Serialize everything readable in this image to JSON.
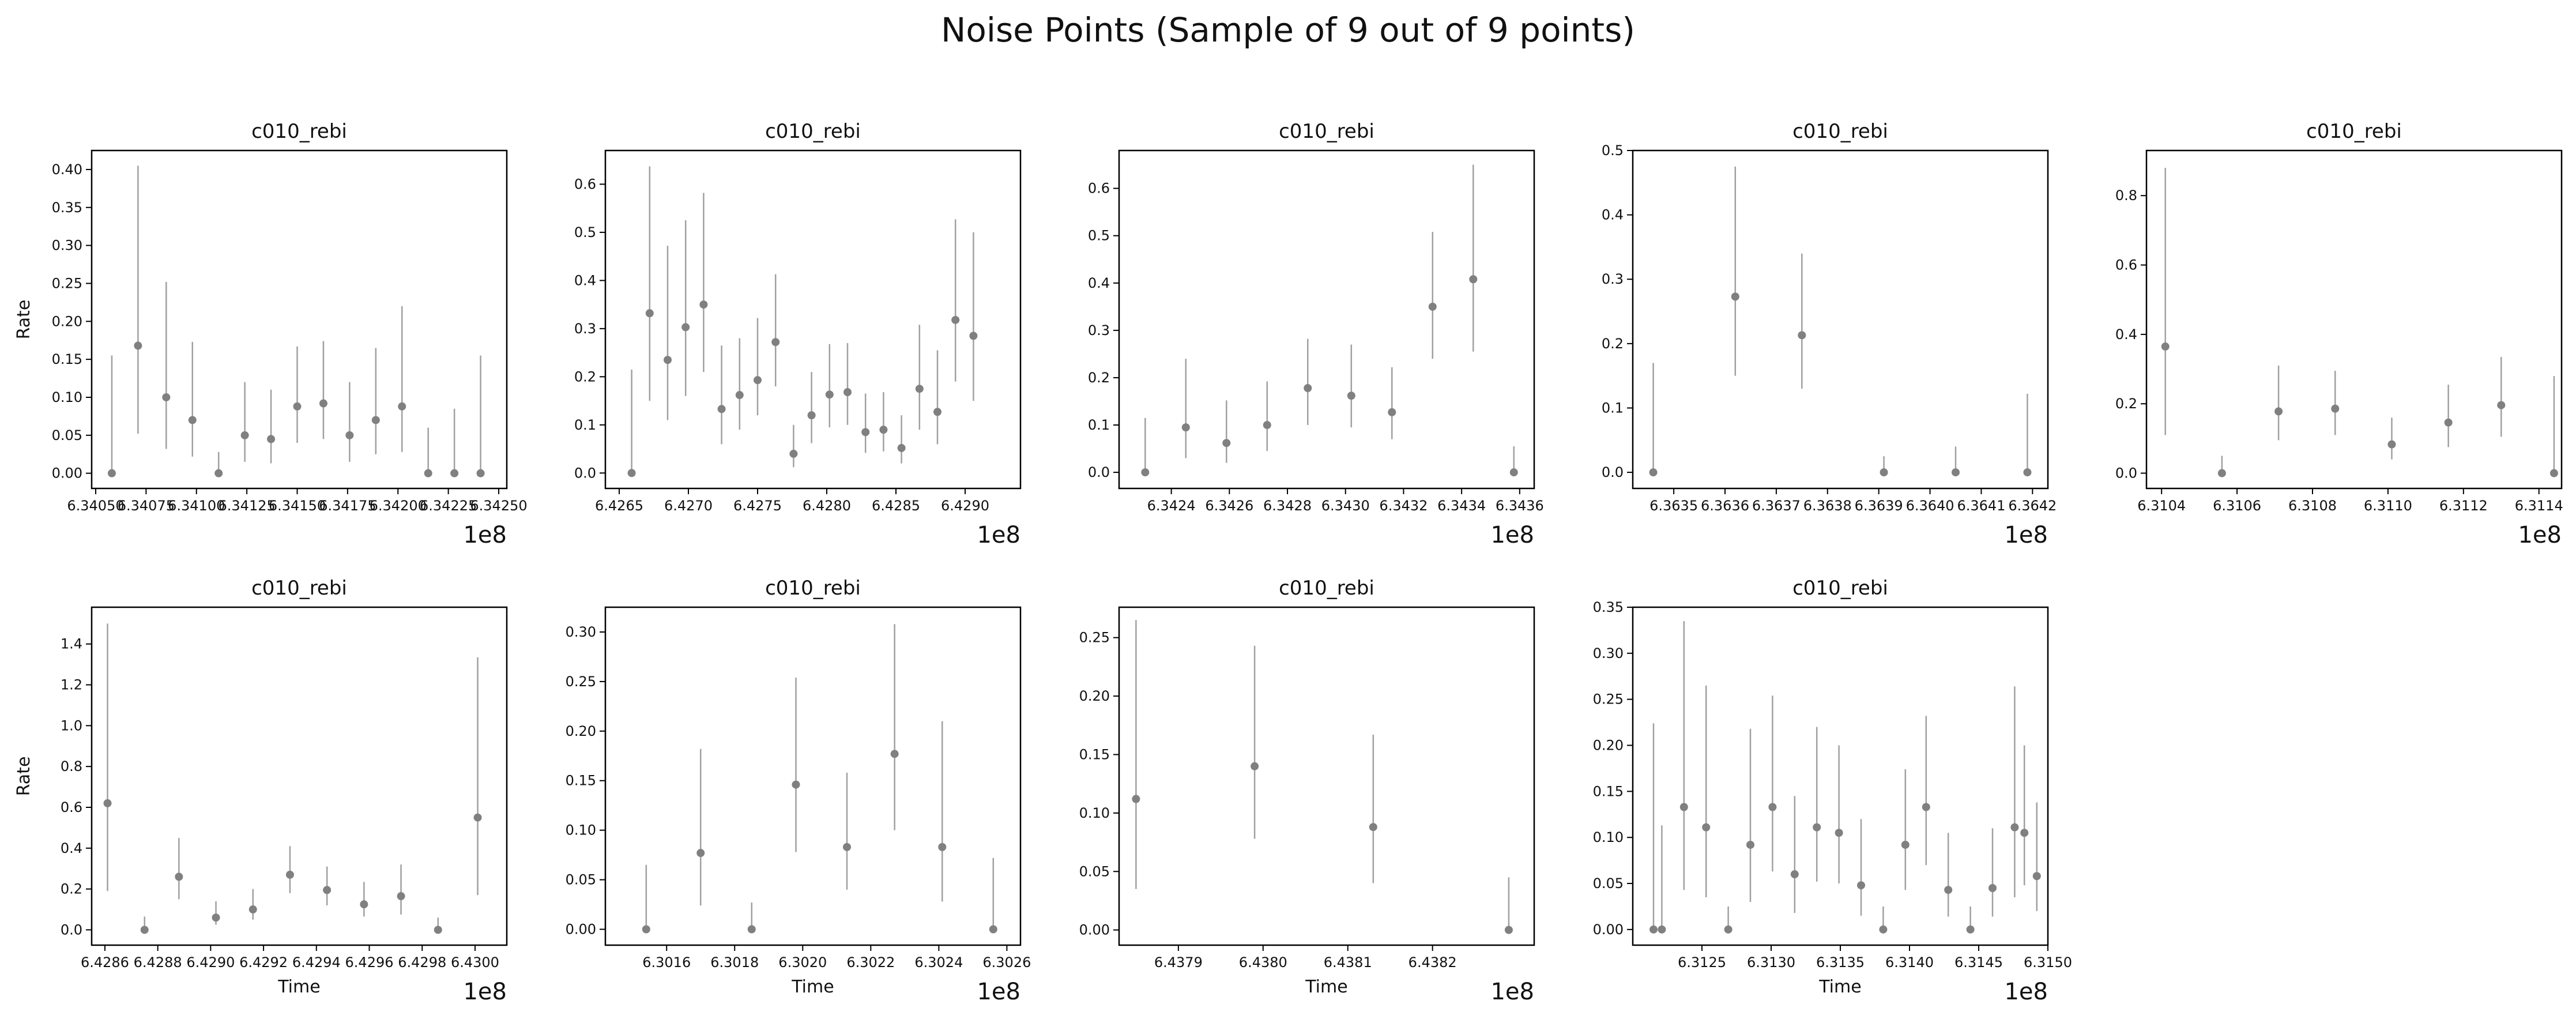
{
  "suptitle": "Noise Points (Sample of 9 out of 9 points)",
  "style": {
    "marker_color": "#808080",
    "errorbar_color": "#a0a0a0",
    "axis_color": "#000000"
  },
  "chart_data": [
    {
      "type": "scatter",
      "title": "c010_rebi",
      "xlabel": "",
      "ylabel": "Rate",
      "offset_label": "1e8",
      "xlim": [
        6.34048,
        6.34254
      ],
      "ylim": [
        -0.02,
        0.425
      ],
      "grid": false,
      "xticks": [
        6.3405,
        6.34075,
        6.341,
        6.34125,
        6.3415,
        6.34175,
        6.342,
        6.34225,
        6.3425
      ],
      "xtick_labels": [
        "6.34050",
        "6.34075",
        "6.34100",
        "6.34125",
        "6.34150",
        "6.34175",
        "6.34200",
        "6.34225",
        "6.34250"
      ],
      "yticks": [
        0.0,
        0.05,
        0.1,
        0.15,
        0.2,
        0.25,
        0.3,
        0.35,
        0.4
      ],
      "ytick_labels": [
        "0.00",
        "0.05",
        "0.10",
        "0.15",
        "0.20",
        "0.25",
        "0.30",
        "0.35",
        "0.40"
      ],
      "points": [
        {
          "x": 6.34058,
          "y": 0.0,
          "lo": 0.0,
          "hi": 0.155
        },
        {
          "x": 6.34071,
          "y": 0.168,
          "lo": 0.052,
          "hi": 0.405
        },
        {
          "x": 6.34085,
          "y": 0.1,
          "lo": 0.032,
          "hi": 0.252
        },
        {
          "x": 6.34098,
          "y": 0.07,
          "lo": 0.022,
          "hi": 0.173
        },
        {
          "x": 6.34111,
          "y": 0.0,
          "lo": 0.0,
          "hi": 0.028
        },
        {
          "x": 6.34124,
          "y": 0.05,
          "lo": 0.015,
          "hi": 0.12
        },
        {
          "x": 6.34137,
          "y": 0.045,
          "lo": 0.013,
          "hi": 0.11
        },
        {
          "x": 6.3415,
          "y": 0.088,
          "lo": 0.04,
          "hi": 0.167
        },
        {
          "x": 6.34163,
          "y": 0.092,
          "lo": 0.045,
          "hi": 0.174
        },
        {
          "x": 6.34176,
          "y": 0.05,
          "lo": 0.015,
          "hi": 0.12
        },
        {
          "x": 6.34189,
          "y": 0.07,
          "lo": 0.025,
          "hi": 0.165
        },
        {
          "x": 6.34202,
          "y": 0.088,
          "lo": 0.028,
          "hi": 0.22
        },
        {
          "x": 6.34215,
          "y": 0.0,
          "lo": 0.0,
          "hi": 0.06
        },
        {
          "x": 6.34228,
          "y": 0.0,
          "lo": 0.0,
          "hi": 0.085
        },
        {
          "x": 6.34241,
          "y": 0.0,
          "lo": 0.0,
          "hi": 0.155
        }
      ]
    },
    {
      "type": "scatter",
      "title": "c010_rebi",
      "xlabel": "",
      "ylabel": "",
      "offset_label": "1e8",
      "xlim": [
        6.4264,
        6.4294
      ],
      "ylim": [
        -0.032,
        0.67
      ],
      "grid": false,
      "xticks": [
        6.4265,
        6.427,
        6.4275,
        6.428,
        6.4285,
        6.429
      ],
      "xtick_labels": [
        "6.4265",
        "6.4270",
        "6.4275",
        "6.4280",
        "6.4285",
        "6.4290"
      ],
      "yticks": [
        0.0,
        0.1,
        0.2,
        0.3,
        0.4,
        0.5,
        0.6
      ],
      "ytick_labels": [
        "0.0",
        "0.1",
        "0.2",
        "0.3",
        "0.4",
        "0.5",
        "0.6"
      ],
      "points": [
        {
          "x": 6.42659,
          "y": 0.0,
          "lo": 0.0,
          "hi": 0.215
        },
        {
          "x": 6.42672,
          "y": 0.332,
          "lo": 0.15,
          "hi": 0.637
        },
        {
          "x": 6.42685,
          "y": 0.235,
          "lo": 0.11,
          "hi": 0.472
        },
        {
          "x": 6.42698,
          "y": 0.303,
          "lo": 0.16,
          "hi": 0.525
        },
        {
          "x": 6.42711,
          "y": 0.35,
          "lo": 0.21,
          "hi": 0.582
        },
        {
          "x": 6.42724,
          "y": 0.133,
          "lo": 0.06,
          "hi": 0.265
        },
        {
          "x": 6.42737,
          "y": 0.162,
          "lo": 0.09,
          "hi": 0.28
        },
        {
          "x": 6.4275,
          "y": 0.193,
          "lo": 0.12,
          "hi": 0.322
        },
        {
          "x": 6.42763,
          "y": 0.272,
          "lo": 0.18,
          "hi": 0.413
        },
        {
          "x": 6.42776,
          "y": 0.04,
          "lo": 0.012,
          "hi": 0.1
        },
        {
          "x": 6.42789,
          "y": 0.12,
          "lo": 0.062,
          "hi": 0.21
        },
        {
          "x": 6.42802,
          "y": 0.163,
          "lo": 0.095,
          "hi": 0.268
        },
        {
          "x": 6.42815,
          "y": 0.168,
          "lo": 0.1,
          "hi": 0.27
        },
        {
          "x": 6.42828,
          "y": 0.085,
          "lo": 0.042,
          "hi": 0.165
        },
        {
          "x": 6.42841,
          "y": 0.09,
          "lo": 0.045,
          "hi": 0.168
        },
        {
          "x": 6.42854,
          "y": 0.052,
          "lo": 0.02,
          "hi": 0.12
        },
        {
          "x": 6.42867,
          "y": 0.175,
          "lo": 0.09,
          "hi": 0.308
        },
        {
          "x": 6.4288,
          "y": 0.127,
          "lo": 0.06,
          "hi": 0.255
        },
        {
          "x": 6.42893,
          "y": 0.318,
          "lo": 0.19,
          "hi": 0.527
        },
        {
          "x": 6.42906,
          "y": 0.285,
          "lo": 0.15,
          "hi": 0.5
        }
      ]
    },
    {
      "type": "scatter",
      "title": "c010_rebi",
      "xlabel": "",
      "ylabel": "",
      "offset_label": "1e8",
      "xlim": [
        6.34222,
        6.34365
      ],
      "ylim": [
        -0.034,
        0.68
      ],
      "grid": false,
      "xticks": [
        6.3424,
        6.3426,
        6.3428,
        6.343,
        6.3432,
        6.3434,
        6.3436
      ],
      "xtick_labels": [
        "6.3424",
        "6.3426",
        "6.3428",
        "6.3430",
        "6.3432",
        "6.3434",
        "6.3436"
      ],
      "yticks": [
        0.0,
        0.1,
        0.2,
        0.3,
        0.4,
        0.5,
        0.6
      ],
      "ytick_labels": [
        "0.0",
        "0.1",
        "0.2",
        "0.3",
        "0.4",
        "0.5",
        "0.6"
      ],
      "points": [
        {
          "x": 6.34231,
          "y": 0.0,
          "lo": 0.0,
          "hi": 0.115
        },
        {
          "x": 6.34245,
          "y": 0.095,
          "lo": 0.03,
          "hi": 0.24
        },
        {
          "x": 6.34259,
          "y": 0.062,
          "lo": 0.02,
          "hi": 0.152
        },
        {
          "x": 6.34273,
          "y": 0.1,
          "lo": 0.045,
          "hi": 0.192
        },
        {
          "x": 6.34287,
          "y": 0.178,
          "lo": 0.1,
          "hi": 0.282
        },
        {
          "x": 6.34302,
          "y": 0.162,
          "lo": 0.095,
          "hi": 0.27
        },
        {
          "x": 6.34316,
          "y": 0.127,
          "lo": 0.07,
          "hi": 0.222
        },
        {
          "x": 6.3433,
          "y": 0.35,
          "lo": 0.24,
          "hi": 0.508
        },
        {
          "x": 6.34344,
          "y": 0.408,
          "lo": 0.255,
          "hi": 0.65
        },
        {
          "x": 6.34358,
          "y": 0.0,
          "lo": 0.0,
          "hi": 0.055
        }
      ]
    },
    {
      "type": "scatter",
      "title": "c010_rebi",
      "xlabel": "",
      "ylabel": "",
      "offset_label": "1e8",
      "xlim": [
        6.36342,
        6.36423
      ],
      "ylim": [
        -0.025,
        0.5
      ],
      "grid": false,
      "xticks": [
        6.3635,
        6.3636,
        6.3637,
        6.3638,
        6.3639,
        6.364,
        6.3641,
        6.3642
      ],
      "xtick_labels": [
        "6.3635",
        "6.3636",
        "6.3637",
        "6.3638",
        "6.3639",
        "6.3640",
        "6.3641",
        "6.3642"
      ],
      "yticks": [
        0.0,
        0.1,
        0.2,
        0.3,
        0.4,
        0.5
      ],
      "ytick_labels": [
        "0.0",
        "0.1",
        "0.2",
        "0.3",
        "0.4",
        "0.5"
      ],
      "points": [
        {
          "x": 6.36346,
          "y": 0.0,
          "lo": 0.0,
          "hi": 0.17
        },
        {
          "x": 6.36362,
          "y": 0.273,
          "lo": 0.15,
          "hi": 0.475
        },
        {
          "x": 6.36375,
          "y": 0.213,
          "lo": 0.13,
          "hi": 0.34
        },
        {
          "x": 6.36391,
          "y": 0.0,
          "lo": 0.0,
          "hi": 0.025
        },
        {
          "x": 6.36405,
          "y": 0.0,
          "lo": 0.0,
          "hi": 0.04
        },
        {
          "x": 6.36419,
          "y": 0.0,
          "lo": 0.0,
          "hi": 0.122
        }
      ]
    },
    {
      "type": "scatter",
      "title": "c010_rebi",
      "xlabel": "",
      "ylabel": "",
      "offset_label": "1e8",
      "xlim": [
        6.31036,
        6.31146
      ],
      "ylim": [
        -0.044,
        0.93
      ],
      "grid": false,
      "xticks": [
        6.3104,
        6.3106,
        6.3108,
        6.311,
        6.3112,
        6.3114
      ],
      "xtick_labels": [
        "6.3104",
        "6.3106",
        "6.3108",
        "6.3110",
        "6.3112",
        "6.3114"
      ],
      "yticks": [
        0.0,
        0.2,
        0.4,
        0.6,
        0.8
      ],
      "ytick_labels": [
        "0.0",
        "0.2",
        "0.4",
        "0.6",
        "0.8"
      ],
      "points": [
        {
          "x": 6.31041,
          "y": 0.365,
          "lo": 0.11,
          "hi": 0.88
        },
        {
          "x": 6.31056,
          "y": 0.0,
          "lo": 0.0,
          "hi": 0.05
        },
        {
          "x": 6.31071,
          "y": 0.178,
          "lo": 0.095,
          "hi": 0.31
        },
        {
          "x": 6.31086,
          "y": 0.186,
          "lo": 0.11,
          "hi": 0.295
        },
        {
          "x": 6.31101,
          "y": 0.083,
          "lo": 0.04,
          "hi": 0.16
        },
        {
          "x": 6.31116,
          "y": 0.146,
          "lo": 0.075,
          "hi": 0.255
        },
        {
          "x": 6.3113,
          "y": 0.196,
          "lo": 0.105,
          "hi": 0.335
        },
        {
          "x": 6.31144,
          "y": 0.0,
          "lo": 0.0,
          "hi": 0.28
        }
      ]
    },
    {
      "type": "scatter",
      "title": "c010_rebi",
      "xlabel": "Time",
      "ylabel": "Rate",
      "offset_label": "1e8",
      "xlim": [
        6.42855,
        6.43012
      ],
      "ylim": [
        -0.075,
        1.58
      ],
      "grid": false,
      "xticks": [
        6.4286,
        6.4288,
        6.429,
        6.4292,
        6.4294,
        6.4296,
        6.4298,
        6.43
      ],
      "xtick_labels": [
        "6.4286",
        "6.4288",
        "6.4290",
        "6.4292",
        "6.4294",
        "6.4296",
        "6.4298",
        "6.4300"
      ],
      "yticks": [
        0.0,
        0.2,
        0.4,
        0.6,
        0.8,
        1.0,
        1.2,
        1.4
      ],
      "ytick_labels": [
        "0.0",
        "0.2",
        "0.4",
        "0.6",
        "0.8",
        "1.0",
        "1.2",
        "1.4"
      ],
      "points": [
        {
          "x": 6.42861,
          "y": 0.62,
          "lo": 0.19,
          "hi": 1.5
        },
        {
          "x": 6.42875,
          "y": 0.0,
          "lo": 0.0,
          "hi": 0.065
        },
        {
          "x": 6.42888,
          "y": 0.26,
          "lo": 0.15,
          "hi": 0.45
        },
        {
          "x": 6.42902,
          "y": 0.06,
          "lo": 0.025,
          "hi": 0.14
        },
        {
          "x": 6.42916,
          "y": 0.1,
          "lo": 0.05,
          "hi": 0.2
        },
        {
          "x": 6.4293,
          "y": 0.27,
          "lo": 0.18,
          "hi": 0.41
        },
        {
          "x": 6.42944,
          "y": 0.195,
          "lo": 0.12,
          "hi": 0.31
        },
        {
          "x": 6.42958,
          "y": 0.125,
          "lo": 0.065,
          "hi": 0.235
        },
        {
          "x": 6.42972,
          "y": 0.165,
          "lo": 0.075,
          "hi": 0.32
        },
        {
          "x": 6.42986,
          "y": 0.0,
          "lo": 0.0,
          "hi": 0.06
        },
        {
          "x": 6.43001,
          "y": 0.55,
          "lo": 0.17,
          "hi": 1.335
        }
      ]
    },
    {
      "type": "scatter",
      "title": "c010_rebi",
      "xlabel": "Time",
      "ylabel": "",
      "offset_label": "1e8",
      "xlim": [
        6.30142,
        6.30264
      ],
      "ylim": [
        -0.016,
        0.325
      ],
      "grid": false,
      "xticks": [
        6.3016,
        6.3018,
        6.302,
        6.3022,
        6.3024,
        6.3026
      ],
      "xtick_labels": [
        "6.3016",
        "6.3018",
        "6.3020",
        "6.3022",
        "6.3024",
        "6.3026"
      ],
      "yticks": [
        0.0,
        0.05,
        0.1,
        0.15,
        0.2,
        0.25,
        0.3
      ],
      "ytick_labels": [
        "0.00",
        "0.05",
        "0.10",
        "0.15",
        "0.20",
        "0.25",
        "0.30"
      ],
      "points": [
        {
          "x": 6.30154,
          "y": 0.0,
          "lo": 0.0,
          "hi": 0.065
        },
        {
          "x": 6.3017,
          "y": 0.077,
          "lo": 0.024,
          "hi": 0.182
        },
        {
          "x": 6.30185,
          "y": 0.0,
          "lo": 0.0,
          "hi": 0.027
        },
        {
          "x": 6.30198,
          "y": 0.146,
          "lo": 0.078,
          "hi": 0.254
        },
        {
          "x": 6.30213,
          "y": 0.083,
          "lo": 0.04,
          "hi": 0.158
        },
        {
          "x": 6.30227,
          "y": 0.177,
          "lo": 0.1,
          "hi": 0.308
        },
        {
          "x": 6.30241,
          "y": 0.083,
          "lo": 0.028,
          "hi": 0.21
        },
        {
          "x": 6.30256,
          "y": 0.0,
          "lo": 0.0,
          "hi": 0.072
        }
      ]
    },
    {
      "type": "scatter",
      "title": "c010_rebi",
      "xlabel": "Time",
      "ylabel": "",
      "offset_label": "1e8",
      "xlim": [
        6.43783,
        6.43832
      ],
      "ylim": [
        -0.013,
        0.276
      ],
      "grid": false,
      "xticks": [
        6.4379,
        6.438,
        6.4381,
        6.4382
      ],
      "xtick_labels": [
        "6.4379",
        "6.4380",
        "6.4381",
        "6.4382"
      ],
      "yticks": [
        0.0,
        0.05,
        0.1,
        0.15,
        0.2,
        0.25
      ],
      "ytick_labels": [
        "0.00",
        "0.05",
        "0.10",
        "0.15",
        "0.20",
        "0.25"
      ],
      "points": [
        {
          "x": 6.43785,
          "y": 0.112,
          "lo": 0.035,
          "hi": 0.265
        },
        {
          "x": 6.43799,
          "y": 0.14,
          "lo": 0.078,
          "hi": 0.243
        },
        {
          "x": 6.43813,
          "y": 0.088,
          "lo": 0.04,
          "hi": 0.167
        },
        {
          "x": 6.43829,
          "y": 0.0,
          "lo": 0.0,
          "hi": 0.045
        }
      ]
    },
    {
      "type": "scatter",
      "title": "c010_rebi",
      "xlabel": "Time",
      "ylabel": "",
      "offset_label": "1e8",
      "xlim": [
        6.312,
        6.315
      ],
      "ylim": [
        -0.017,
        0.35
      ],
      "grid": false,
      "xticks": [
        6.3125,
        6.313,
        6.3135,
        6.314,
        6.3145,
        6.315
      ],
      "xtick_labels": [
        "6.3125",
        "6.3130",
        "6.3135",
        "6.3140",
        "6.3145",
        "6.3150"
      ],
      "yticks": [
        0.0,
        0.05,
        0.1,
        0.15,
        0.2,
        0.25,
        0.3,
        0.35
      ],
      "ytick_labels": [
        "0.00",
        "0.05",
        "0.10",
        "0.15",
        "0.20",
        "0.25",
        "0.30",
        "0.35"
      ],
      "points": [
        {
          "x": 6.31215,
          "y": 0.0,
          "lo": 0.0,
          "hi": 0.224
        },
        {
          "x": 6.31221,
          "y": 0.0,
          "lo": 0.0,
          "hi": 0.113
        },
        {
          "x": 6.31237,
          "y": 0.133,
          "lo": 0.043,
          "hi": 0.335
        },
        {
          "x": 6.31253,
          "y": 0.111,
          "lo": 0.035,
          "hi": 0.265
        },
        {
          "x": 6.31269,
          "y": 0.0,
          "lo": 0.0,
          "hi": 0.025
        },
        {
          "x": 6.31285,
          "y": 0.092,
          "lo": 0.03,
          "hi": 0.218
        },
        {
          "x": 6.31301,
          "y": 0.133,
          "lo": 0.063,
          "hi": 0.254
        },
        {
          "x": 6.31317,
          "y": 0.06,
          "lo": 0.018,
          "hi": 0.145
        },
        {
          "x": 6.31333,
          "y": 0.111,
          "lo": 0.052,
          "hi": 0.22
        },
        {
          "x": 6.31349,
          "y": 0.105,
          "lo": 0.05,
          "hi": 0.2
        },
        {
          "x": 6.31365,
          "y": 0.048,
          "lo": 0.015,
          "hi": 0.12
        },
        {
          "x": 6.31381,
          "y": 0.0,
          "lo": 0.0,
          "hi": 0.025
        },
        {
          "x": 6.31397,
          "y": 0.092,
          "lo": 0.043,
          "hi": 0.174
        },
        {
          "x": 6.31412,
          "y": 0.133,
          "lo": 0.07,
          "hi": 0.232
        },
        {
          "x": 6.31428,
          "y": 0.043,
          "lo": 0.014,
          "hi": 0.105
        },
        {
          "x": 6.31444,
          "y": 0.0,
          "lo": 0.0,
          "hi": 0.025
        },
        {
          "x": 6.3146,
          "y": 0.045,
          "lo": 0.014,
          "hi": 0.11
        },
        {
          "x": 6.31476,
          "y": 0.111,
          "lo": 0.035,
          "hi": 0.264
        },
        {
          "x": 6.31483,
          "y": 0.105,
          "lo": 0.048,
          "hi": 0.2
        },
        {
          "x": 6.31492,
          "y": 0.058,
          "lo": 0.02,
          "hi": 0.138
        }
      ]
    }
  ]
}
